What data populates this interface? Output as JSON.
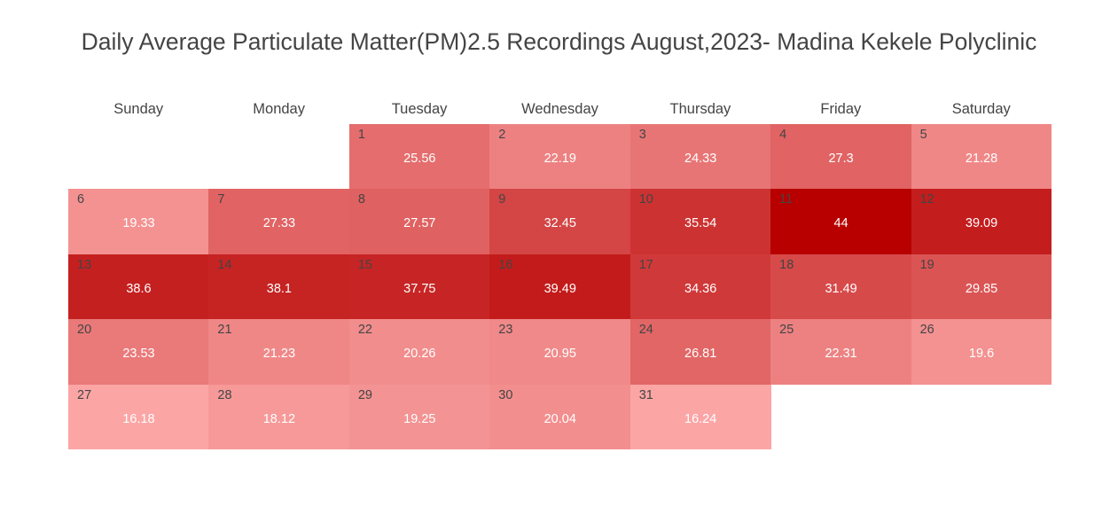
{
  "chart_data": {
    "type": "heatmap",
    "title": "Daily Average Particulate Matter(PM)2.5 Recordings August,2023- Madina Kekele Polyclinic",
    "month": "August",
    "year": 2023,
    "weekdays": [
      "Sunday",
      "Monday",
      "Tuesday",
      "Wednesday",
      "Thursday",
      "Friday",
      "Saturday"
    ],
    "first_weekday_index": 2,
    "days": [
      1,
      2,
      3,
      4,
      5,
      6,
      7,
      8,
      9,
      10,
      11,
      12,
      13,
      14,
      15,
      16,
      17,
      18,
      19,
      20,
      21,
      22,
      23,
      24,
      25,
      26,
      27,
      28,
      29,
      30,
      31
    ],
    "values": [
      "25.56",
      "22.19",
      "24.33",
      "27.3",
      "21.28",
      "19.33",
      "27.33",
      "27.57",
      "32.45",
      "35.54",
      "44",
      "39.09",
      "38.6",
      "38.1",
      "37.75",
      "39.49",
      "34.36",
      "31.49",
      "29.85",
      "23.53",
      "21.23",
      "20.26",
      "20.95",
      "26.81",
      "22.31",
      "19.6",
      "16.18",
      "18.12",
      "19.25",
      "20.04",
      "16.24"
    ],
    "color_low": "#fca5a5",
    "color_high": "#b80000",
    "text_color": "#ffffff"
  }
}
